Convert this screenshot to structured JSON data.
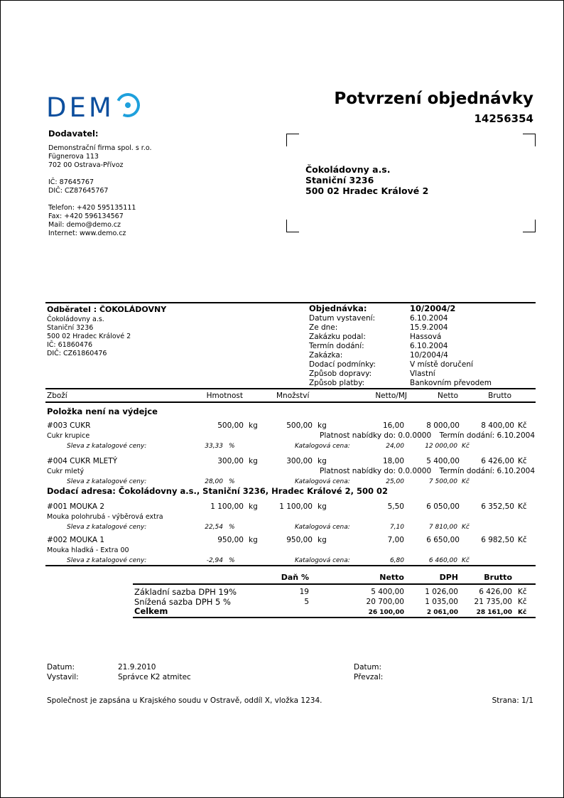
{
  "logo": {
    "text": "DEMO",
    "colors": {
      "letters": "#0d4f9e",
      "o": "#1ea0dc"
    }
  },
  "title": "Potvrzení objednávky",
  "doc_number": "14256354",
  "supplier": {
    "heading": "Dodavatel:",
    "name": "Demonstrační firma spol. s r.o.",
    "street": "Fügnerova 113",
    "city": "702 00 Ostrava-Přívoz",
    "ic": "IČ: 87645767",
    "dic": "DIČ: CZ87645767",
    "phone": "Telefon: +420  595135111",
    "fax": "Fax: +420  596134567",
    "mail": "Mail: demo@demo.cz",
    "web": "Internet: www.demo.cz"
  },
  "recipient": {
    "name": "Čokoládovny a.s.",
    "street": "Staniční 3236",
    "city": "500 02  Hradec Králové 2"
  },
  "customer": {
    "heading": "Odběratel : ČOKOLÁDOVNY",
    "lines": [
      "Čokoládovny a.s.",
      "Staniční 3236",
      "500 02  Hradec Králové 2",
      "IČ: 61860476",
      "DIČ: CZ61860476"
    ]
  },
  "order": {
    "heading_label": "Objednávka:",
    "heading_value": "10/2004/2",
    "fields": [
      {
        "label": "Datum vystavení:",
        "value": "6.10.2004"
      },
      {
        "label": "Ze dne:",
        "value": "15.9.2004"
      },
      {
        "label": "Zakázku podal:",
        "value": "Hassová"
      },
      {
        "label": "Termín dodání:",
        "value": "6.10.2004"
      },
      {
        "label": "Zakázka:",
        "value": "10/2004/4"
      },
      {
        "label": "Dodací podmínky:",
        "value": "V místě doručení"
      },
      {
        "label": "Způsob dopravy:",
        "value": "Vlastní"
      },
      {
        "label": "Způsob platby:",
        "value": "Bankovním převodem"
      }
    ]
  },
  "columns": {
    "item": "Zboží",
    "weight": "Hmotnost",
    "qty": "Množství",
    "unit_net": "Netto/MJ",
    "net": "Netto",
    "gross": "Brutto"
  },
  "groups": [
    {
      "title": "Položka není na výdejce"
    },
    {
      "title": "Dodací adresa: Čokoládovny a.s., Staniční 3236, Hradec Králové 2, 500 02"
    }
  ],
  "labels": {
    "discount": "Sleva z katalogové ceny:",
    "catalog": "Katalogová cena:",
    "pct": "%",
    "currency": "Kč",
    "unit": "kg"
  },
  "items": [
    {
      "code": "#003 CUKR",
      "desc": "Cukr krupice",
      "weight": "500,00",
      "qty": "500,00",
      "unit_net": "16,00",
      "net": "8 000,00",
      "gross": "8 400,00",
      "validity": "Platnost nabídky do: 0.0.0000",
      "delivery": "Termín dodání: 6.10.2004",
      "discount": "33,33",
      "cat_price": "24,00",
      "cat_total": "12 000,00"
    },
    {
      "code": "#004 CUKR MLETÝ",
      "desc": "Cukr mletý",
      "weight": "300,00",
      "qty": "300,00",
      "unit_net": "18,00",
      "net": "5 400,00",
      "gross": "6 426,00",
      "validity": "Platnost nabídky do: 0.0.0000",
      "delivery": "Termín dodání: 6.10.2004",
      "discount": "28,00",
      "cat_price": "25,00",
      "cat_total": "7 500,00"
    },
    {
      "code": "#001 MOUKA 2",
      "desc": "Mouka polohrubá - výběrová  extra",
      "weight": "1 100,00",
      "qty": "1 100,00",
      "unit_net": "5,50",
      "net": "6 050,00",
      "gross": "6 352,50",
      "discount": "22,54",
      "cat_price": "7,10",
      "cat_total": "7 810,00"
    },
    {
      "code": "#002 MOUKA 1",
      "desc": "Mouka hladká - Extra 00",
      "weight": "950,00",
      "qty": "950,00",
      "unit_net": "7,00",
      "net": "6 650,00",
      "gross": "6 982,50",
      "discount": "-2,94",
      "cat_price": "6,80",
      "cat_total": "6 460,00"
    }
  ],
  "summary": {
    "headers": {
      "rate": "Daň %",
      "net": "Netto",
      "vat": "DPH",
      "gross": "Brutto"
    },
    "rows": [
      {
        "label": "Základní sazba DPH 19%",
        "rate": "19",
        "net": "5 400,00",
        "vat": "1 026,00",
        "gross": "6 426,00"
      },
      {
        "label": "Snížená sazba DPH 5 %",
        "rate": "5",
        "net": "20 700,00",
        "vat": "1 035,00",
        "gross": "21 735,00"
      }
    ],
    "total": {
      "label": "Celkem",
      "net": "26 100,00",
      "vat": "2 061,00",
      "gross": "28 161,00"
    }
  },
  "footer": {
    "date_label": "Datum:",
    "date_value": "21.9.2010",
    "issued_label": "Vystavil:",
    "issued_value": "Správce K2 atmitec",
    "date2_label": "Datum:",
    "received_label": "Převzal:",
    "registry": "Společnost je zapsána u Krajského soudu v Ostravě, oddíl X, vložka 1234.",
    "page": "Strana: 1/1"
  }
}
